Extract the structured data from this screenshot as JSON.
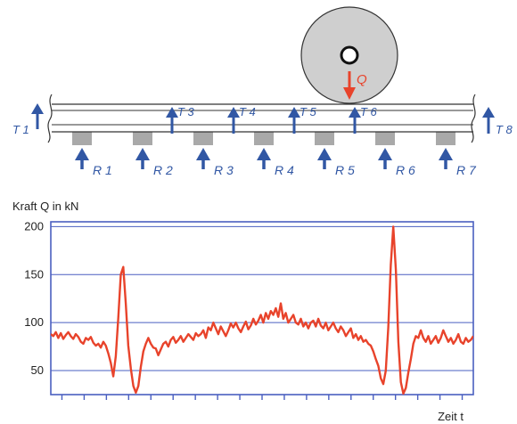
{
  "colors": {
    "arrow": "#3157a4",
    "force_arrow": "#e8432b",
    "curve": "#e8432b",
    "grid": "#4a5fc0",
    "frame": "#4a5fc0",
    "sleeper": "#a9a9a9",
    "wheel": "#cfcfcf"
  },
  "diagram": {
    "force_label": "Q",
    "t_sensors": [
      "T 1",
      "T 3",
      "T 4",
      "T 5",
      "T 6",
      "T 8"
    ],
    "r_sensors": [
      "R 1",
      "R 2",
      "R 3",
      "R 4",
      "R 5",
      "R 6",
      "R 7"
    ]
  },
  "chart_data": {
    "type": "line",
    "title": "Kraft Q in kN",
    "xlabel": "Zeit t",
    "ylabel": "Kraft Q in kN",
    "yticks": [
      50,
      100,
      150,
      200
    ],
    "ylim": [
      25,
      205
    ],
    "x_tick_count": 19,
    "grid": true,
    "series": [
      {
        "values": [
          88,
          86,
          90,
          84,
          89,
          83,
          87,
          90,
          86,
          83,
          88,
          85,
          80,
          78,
          84,
          82,
          85,
          79,
          76,
          78,
          74,
          80,
          76,
          68,
          58,
          44,
          65,
          105,
          150,
          158,
          120,
          76,
          52,
          34,
          27,
          34,
          54,
          70,
          78,
          84,
          78,
          74,
          73,
          66,
          72,
          78,
          80,
          75,
          82,
          85,
          79,
          82,
          86,
          80,
          84,
          88,
          85,
          82,
          89,
          86,
          88,
          92,
          84,
          95,
          92,
          100,
          94,
          88,
          96,
          91,
          86,
          92,
          99,
          95,
          100,
          94,
          90,
          96,
          101,
          93,
          97,
          104,
          98,
          102,
          108,
          100,
          110,
          104,
          112,
          108,
          115,
          106,
          120,
          104,
          110,
          100,
          104,
          108,
          100,
          98,
          104,
          96,
          100,
          94,
          100,
          102,
          96,
          104,
          97,
          94,
          100,
          92,
          96,
          100,
          94,
          90,
          96,
          92,
          86,
          90,
          94,
          84,
          88,
          82,
          86,
          80,
          82,
          78,
          76,
          70,
          62,
          55,
          42,
          36,
          50,
          95,
          160,
          200,
          155,
          80,
          38,
          26,
          32,
          48,
          62,
          78,
          86,
          84,
          92,
          84,
          80,
          86,
          78,
          82,
          86,
          79,
          84,
          92,
          86,
          80,
          84,
          78,
          82,
          88,
          80,
          78,
          84,
          80,
          82,
          86
        ]
      }
    ]
  }
}
